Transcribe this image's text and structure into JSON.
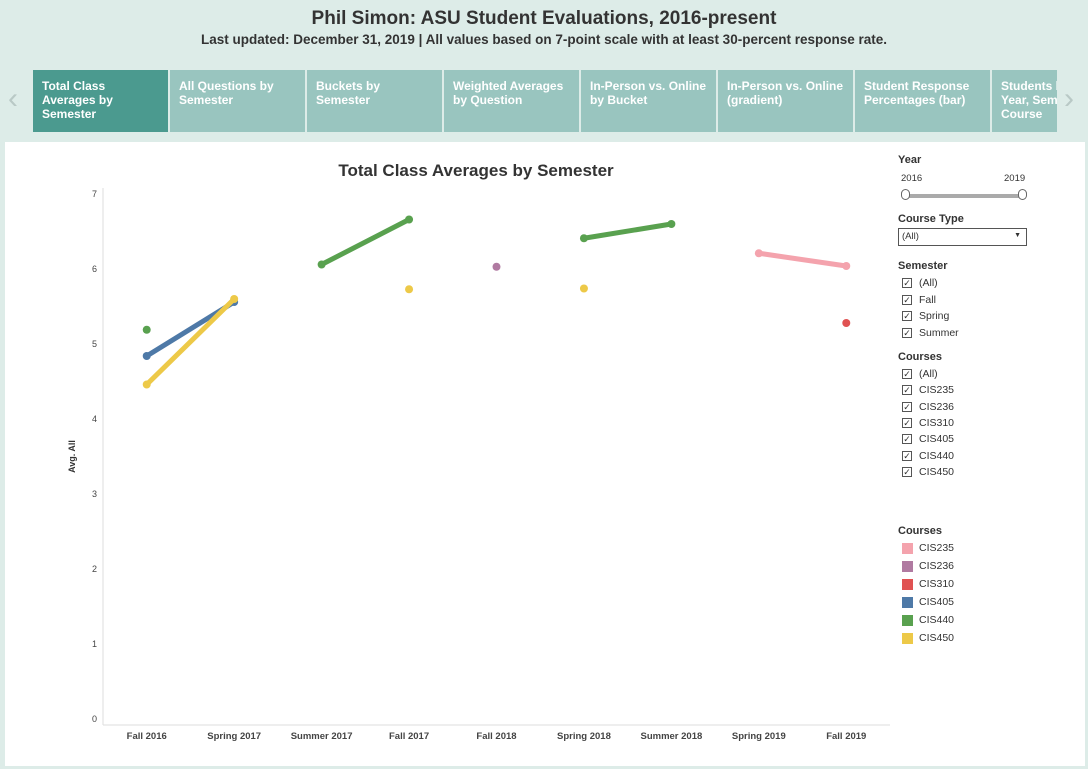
{
  "header": {
    "title": "Phil Simon: ASU Student Evaluations, 2016-present",
    "subtitle": "Last updated: December 31, 2019 | All values based on 7-point scale with at least 30-percent response rate."
  },
  "nav": {
    "prev_icon": "chevron-left-icon",
    "next_icon": "chevron-right-icon"
  },
  "tabs": [
    {
      "lines": [
        "Total Class",
        "Averages by",
        "Semester"
      ],
      "active": true
    },
    {
      "lines": [
        "All Questions by",
        "Semester"
      ],
      "active": false
    },
    {
      "lines": [
        "Buckets by",
        "Semester"
      ],
      "active": false
    },
    {
      "lines": [
        "Weighted Averages",
        "by Question"
      ],
      "active": false
    },
    {
      "lines": [
        "In-Person vs. Online",
        "by Bucket"
      ],
      "active": false
    },
    {
      "lines": [
        "In-Person vs. Online",
        "(gradient)"
      ],
      "active": false
    },
    {
      "lines": [
        "Student Response",
        "Percentages (bar)"
      ],
      "active": false
    },
    {
      "lines": [
        "Students by",
        "Year, Semester,",
        "Course"
      ],
      "active": false
    }
  ],
  "filters": {
    "year": {
      "label": "Year",
      "min": "2016",
      "max": "2019"
    },
    "course_type": {
      "label": "Course Type",
      "value": "(All)"
    },
    "semester": {
      "label": "Semester",
      "options": [
        "(All)",
        "Fall",
        "Spring",
        "Summer"
      ]
    },
    "courses": {
      "label": "Courses",
      "options": [
        "(All)",
        "CIS235",
        "CIS236",
        "CIS310",
        "CIS405",
        "CIS440",
        "CIS450"
      ]
    },
    "check_mark": "✓"
  },
  "legend": {
    "title": "Courses",
    "items": [
      {
        "name": "CIS235",
        "color": "#f4a3ad"
      },
      {
        "name": "CIS236",
        "color": "#b07aa1"
      },
      {
        "name": "CIS310",
        "color": "#e05252"
      },
      {
        "name": "CIS405",
        "color": "#4e79a7"
      },
      {
        "name": "CIS440",
        "color": "#59a14f"
      },
      {
        "name": "CIS450",
        "color": "#edc948"
      }
    ]
  },
  "chart_data": {
    "type": "line",
    "title": "Total Class Averages by Semester",
    "xlabel": "",
    "ylabel": "Avg. All",
    "categories": [
      "Fall 2016",
      "Spring 2017",
      "Summer 2017",
      "Fall 2017",
      "Fall 2018",
      "Spring 2018",
      "Summer 2018",
      "Spring 2019",
      "Fall 2019"
    ],
    "ylim": [
      0,
      7
    ],
    "yticks": [
      0,
      1,
      2,
      3,
      4,
      5,
      6,
      7
    ],
    "grid": false,
    "legend_position": "right",
    "series": [
      {
        "name": "CIS235",
        "color": "#f4a3ad",
        "segments": [
          [
            {
              "x": "Spring 2019",
              "y": 6.21
            },
            {
              "x": "Fall 2019",
              "y": 6.04
            }
          ]
        ]
      },
      {
        "name": "CIS236",
        "color": "#b07aa1",
        "segments": [
          [
            {
              "x": "Fall 2018",
              "y": 6.03
            }
          ]
        ]
      },
      {
        "name": "CIS310",
        "color": "#e05252",
        "segments": [
          [
            {
              "x": "Fall 2019",
              "y": 5.28
            }
          ]
        ]
      },
      {
        "name": "CIS405",
        "color": "#4e79a7",
        "segments": [
          [
            {
              "x": "Fall 2016",
              "y": 4.84
            },
            {
              "x": "Spring 2017",
              "y": 5.56
            }
          ]
        ]
      },
      {
        "name": "CIS440",
        "color": "#59a14f",
        "segments": [
          [
            {
              "x": "Fall 2016",
              "y": 5.19
            }
          ],
          [
            {
              "x": "Summer 2017",
              "y": 6.06
            },
            {
              "x": "Fall 2017",
              "y": 6.66
            }
          ],
          [
            {
              "x": "Spring 2018",
              "y": 6.41
            },
            {
              "x": "Summer 2018",
              "y": 6.6
            }
          ]
        ]
      },
      {
        "name": "CIS450",
        "color": "#edc948",
        "segments": [
          [
            {
              "x": "Fall 2016",
              "y": 4.46
            },
            {
              "x": "Spring 2017",
              "y": 5.6
            }
          ],
          [
            {
              "x": "Fall 2017",
              "y": 5.73
            }
          ],
          [
            {
              "x": "Spring 2018",
              "y": 5.74
            }
          ]
        ]
      }
    ]
  }
}
